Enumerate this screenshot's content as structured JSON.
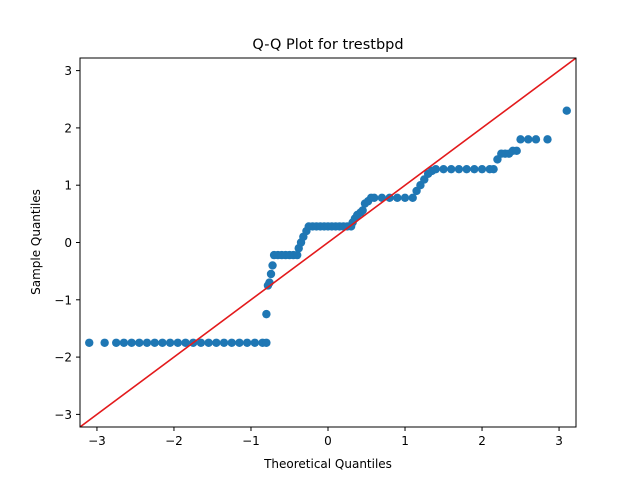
{
  "chart_data": {
    "type": "scatter",
    "title": "Q-Q Plot for trestbpd",
    "xlabel": "Theoretical Quantiles",
    "ylabel": "Sample Quantiles",
    "xlim": [
      -3.22,
      3.22
    ],
    "ylim": [
      -3.22,
      3.22
    ],
    "x_ticks": [
      -3,
      -2,
      -1,
      0,
      1,
      2,
      3
    ],
    "y_ticks": [
      -3,
      -2,
      -1,
      0,
      1,
      2,
      3
    ],
    "grid": false,
    "marker_color": "#1f77b4",
    "line_color": "#e31a1c",
    "reference_line": {
      "x": [
        -3.22,
        3.22
      ],
      "y": [
        -3.22,
        3.22
      ]
    },
    "series": [
      {
        "x": [
          -3.1,
          -2.9,
          -2.75,
          -2.65,
          -2.55,
          -2.45,
          -2.35,
          -2.25,
          -2.15,
          -2.05,
          -1.95,
          -1.85,
          -1.75,
          -1.65,
          -1.55,
          -1.45,
          -1.35,
          -1.25,
          -1.15,
          -1.05,
          -0.95,
          -0.85,
          -0.8,
          -0.8,
          -0.78,
          -0.76,
          -0.74,
          -0.72,
          -0.7,
          -0.65,
          -0.6,
          -0.55,
          -0.5,
          -0.45,
          -0.4,
          -0.38,
          -0.35,
          -0.32,
          -0.28,
          -0.25,
          -0.2,
          -0.15,
          -0.1,
          -0.05,
          0.0,
          0.05,
          0.1,
          0.15,
          0.2,
          0.25,
          0.3,
          0.32,
          0.35,
          0.38,
          0.42,
          0.45,
          0.48,
          0.52,
          0.56,
          0.6,
          0.7,
          0.8,
          0.9,
          1.0,
          1.1,
          1.15,
          1.2,
          1.25,
          1.3,
          1.35,
          1.4,
          1.5,
          1.6,
          1.7,
          1.8,
          1.9,
          2.0,
          2.1,
          2.15,
          2.2,
          2.25,
          2.3,
          2.35,
          2.4,
          2.45,
          2.5,
          2.6,
          2.7,
          2.85,
          3.1
        ],
        "y": [
          -1.75,
          -1.75,
          -1.75,
          -1.75,
          -1.75,
          -1.75,
          -1.75,
          -1.75,
          -1.75,
          -1.75,
          -1.75,
          -1.75,
          -1.75,
          -1.75,
          -1.75,
          -1.75,
          -1.75,
          -1.75,
          -1.75,
          -1.75,
          -1.75,
          -1.75,
          -1.75,
          -1.25,
          -0.75,
          -0.7,
          -0.55,
          -0.4,
          -0.22,
          -0.22,
          -0.22,
          -0.22,
          -0.22,
          -0.22,
          -0.22,
          -0.1,
          0.0,
          0.1,
          0.2,
          0.28,
          0.28,
          0.28,
          0.28,
          0.28,
          0.28,
          0.28,
          0.28,
          0.28,
          0.28,
          0.28,
          0.28,
          0.35,
          0.42,
          0.48,
          0.52,
          0.56,
          0.68,
          0.72,
          0.78,
          0.78,
          0.78,
          0.78,
          0.78,
          0.78,
          0.78,
          0.9,
          1.0,
          1.1,
          1.2,
          1.25,
          1.28,
          1.28,
          1.28,
          1.28,
          1.28,
          1.28,
          1.28,
          1.28,
          1.28,
          1.45,
          1.55,
          1.55,
          1.55,
          1.6,
          1.6,
          1.8,
          1.8,
          1.8,
          1.8,
          2.3
        ]
      }
    ]
  }
}
